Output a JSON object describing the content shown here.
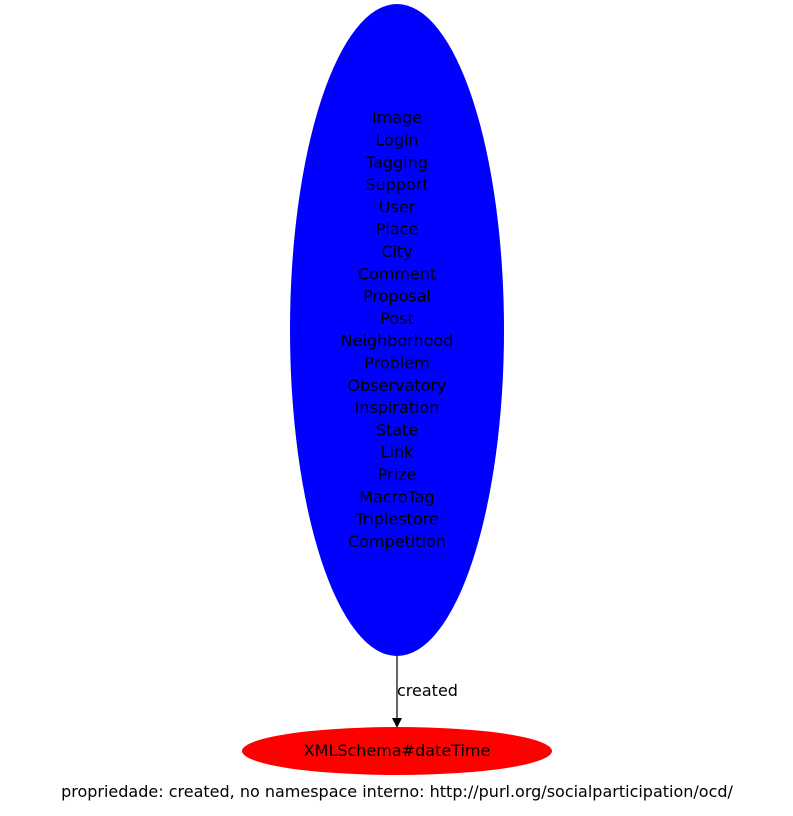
{
  "source_node": {
    "color": "#0000ff",
    "labels": [
      "Image",
      "Login",
      "Tagging",
      "Support",
      "User",
      "Place",
      "City",
      "Comment",
      "Proposal",
      "Post",
      "Neighborhood",
      "Problem",
      "Observatory",
      "Inspiration",
      "State",
      "Link",
      "Prize",
      "MacroTag",
      "Triplestore",
      "Competition"
    ]
  },
  "edge": {
    "label": "created"
  },
  "target_node": {
    "color": "#ff0000",
    "label": "XMLSchema#dateTime"
  },
  "caption": "propriedade: created, no namespace interno: http://purl.org/socialparticipation/ocd/"
}
